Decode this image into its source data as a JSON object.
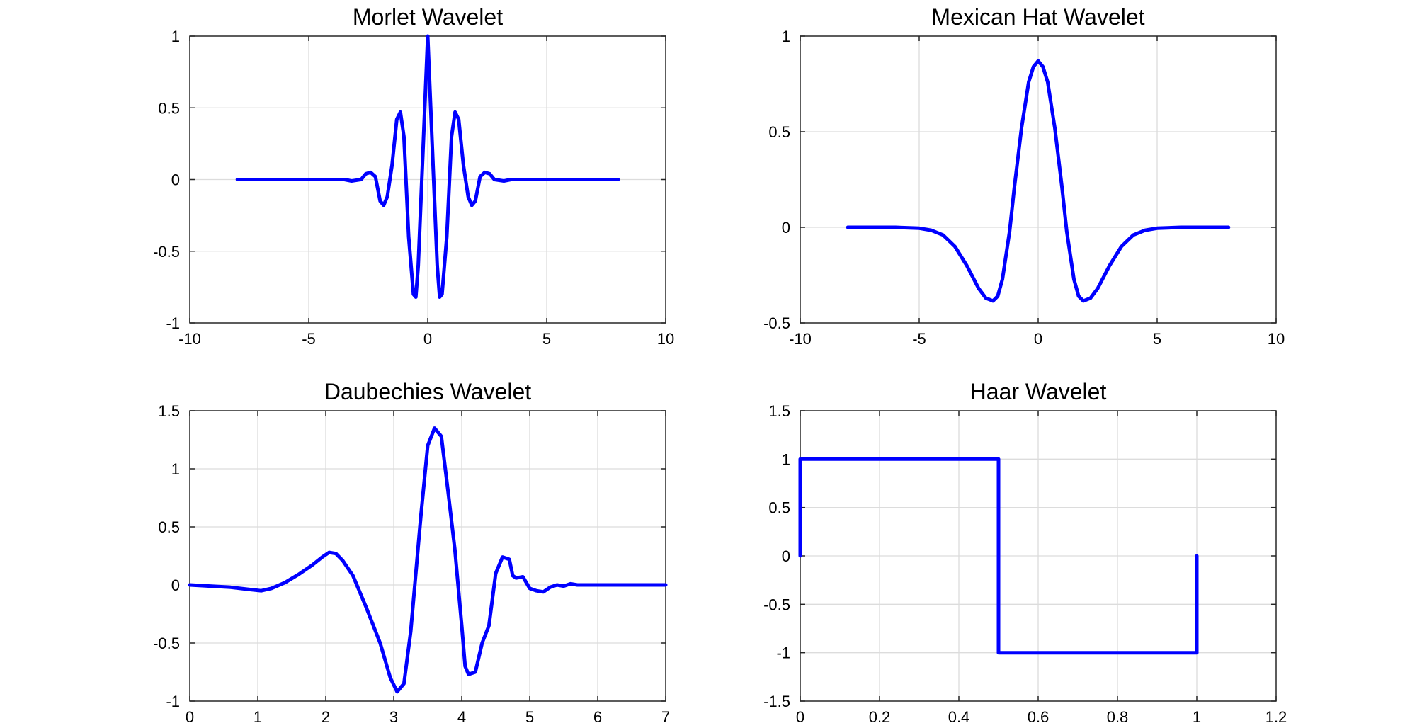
{
  "chart_data": [
    {
      "type": "line",
      "title": "Morlet Wavelet",
      "xlabel": "",
      "ylabel": "",
      "xlim": [
        -10,
        10
      ],
      "ylim": [
        -1,
        1
      ],
      "xticks": [
        -10,
        -5,
        0,
        5,
        10
      ],
      "yticks": [
        -1,
        -0.5,
        0,
        0.5,
        1
      ],
      "xtick_labels": [
        "-10",
        "-5",
        "0",
        "5",
        "10"
      ],
      "ytick_labels": [
        "-1",
        "-0.5",
        "0",
        "0.5",
        "1"
      ],
      "grid": true,
      "legend": "none",
      "color": "#0000ff",
      "series": [
        {
          "x": [
            -8,
            -4,
            -3.5,
            -3.2,
            -2.8,
            -2.6,
            -2.4,
            -2.2,
            -2.0,
            -1.85,
            -1.7,
            -1.5,
            -1.3,
            -1.15,
            -1.0,
            -0.8,
            -0.6,
            -0.5,
            -0.4,
            -0.2,
            0,
            0.2,
            0.4,
            0.5,
            0.6,
            0.8,
            1.0,
            1.15,
            1.3,
            1.5,
            1.7,
            1.85,
            2.0,
            2.2,
            2.4,
            2.6,
            2.8,
            3.2,
            3.5,
            4,
            8
          ],
          "y": [
            0,
            0,
            0,
            -0.01,
            0.0,
            0.04,
            0.05,
            0.02,
            -0.15,
            -0.18,
            -0.12,
            0.1,
            0.42,
            0.47,
            0.3,
            -0.4,
            -0.8,
            -0.82,
            -0.6,
            0.2,
            1.0,
            0.2,
            -0.6,
            -0.82,
            -0.8,
            -0.4,
            0.3,
            0.47,
            0.42,
            0.1,
            -0.12,
            -0.18,
            -0.15,
            0.02,
            0.05,
            0.04,
            0.0,
            -0.01,
            0,
            0,
            0
          ]
        }
      ]
    },
    {
      "type": "line",
      "title": "Mexican Hat Wavelet",
      "xlabel": "",
      "ylabel": "",
      "xlim": [
        -10,
        10
      ],
      "ylim": [
        -0.5,
        1
      ],
      "xticks": [
        -10,
        -5,
        0,
        5,
        10
      ],
      "yticks": [
        -0.5,
        0,
        0.5,
        1
      ],
      "xtick_labels": [
        "-10",
        "-5",
        "0",
        "5",
        "10"
      ],
      "ytick_labels": [
        "-0.5",
        "0",
        "0.5",
        "1"
      ],
      "grid": true,
      "legend": "none",
      "color": "#0000ff",
      "series": [
        {
          "x": [
            -8,
            -6,
            -5,
            -4.5,
            -4,
            -3.5,
            -3,
            -2.5,
            -2.2,
            -1.9,
            -1.7,
            -1.5,
            -1.2,
            -1.0,
            -0.7,
            -0.4,
            -0.2,
            0,
            0.2,
            0.4,
            0.7,
            1.0,
            1.2,
            1.5,
            1.7,
            1.9,
            2.2,
            2.5,
            3,
            3.5,
            4,
            4.5,
            5,
            6,
            8
          ],
          "y": [
            0,
            0,
            -0.005,
            -0.015,
            -0.04,
            -0.1,
            -0.2,
            -0.32,
            -0.37,
            -0.385,
            -0.36,
            -0.27,
            -0.02,
            0.21,
            0.52,
            0.76,
            0.84,
            0.87,
            0.84,
            0.76,
            0.52,
            0.21,
            -0.02,
            -0.27,
            -0.36,
            -0.385,
            -0.37,
            -0.32,
            -0.2,
            -0.1,
            -0.04,
            -0.015,
            -0.005,
            0,
            0
          ]
        }
      ]
    },
    {
      "type": "line",
      "title": "Daubechies Wavelet",
      "xlabel": "",
      "ylabel": "",
      "xlim": [
        0,
        7
      ],
      "ylim": [
        -1,
        1.5
      ],
      "xticks": [
        0,
        1,
        2,
        3,
        4,
        5,
        6,
        7
      ],
      "yticks": [
        -1,
        -0.5,
        0,
        0.5,
        1,
        1.5
      ],
      "xtick_labels": [
        "0",
        "1",
        "2",
        "3",
        "4",
        "5",
        "6",
        "7"
      ],
      "ytick_labels": [
        "-1",
        "-0.5",
        "0",
        "0.5",
        "1",
        "1.5"
      ],
      "grid": true,
      "legend": "none",
      "color": "#0000ff",
      "series": [
        {
          "x": [
            0,
            0.3,
            0.6,
            0.9,
            1.05,
            1.2,
            1.4,
            1.6,
            1.8,
            1.95,
            2.05,
            2.15,
            2.25,
            2.4,
            2.6,
            2.8,
            2.95,
            3.05,
            3.15,
            3.25,
            3.4,
            3.5,
            3.6,
            3.7,
            3.8,
            3.9,
            4.0,
            4.05,
            4.1,
            4.2,
            4.3,
            4.4,
            4.5,
            4.6,
            4.7,
            4.75,
            4.8,
            4.9,
            4.95,
            5.0,
            5.1,
            5.2,
            5.3,
            5.4,
            5.5,
            5.6,
            5.7,
            6,
            7
          ],
          "y": [
            0,
            -0.01,
            -0.02,
            -0.04,
            -0.05,
            -0.03,
            0.02,
            0.09,
            0.17,
            0.24,
            0.28,
            0.27,
            0.21,
            0.08,
            -0.2,
            -0.5,
            -0.8,
            -0.92,
            -0.85,
            -0.4,
            0.6,
            1.2,
            1.35,
            1.28,
            0.8,
            0.3,
            -0.35,
            -0.7,
            -0.77,
            -0.75,
            -0.5,
            -0.35,
            0.1,
            0.24,
            0.22,
            0.08,
            0.06,
            0.07,
            0.02,
            -0.03,
            -0.05,
            -0.06,
            -0.02,
            0.0,
            -0.01,
            0.01,
            0.0,
            0.0,
            0.0
          ]
        }
      ]
    },
    {
      "type": "line",
      "title": "Haar Wavelet",
      "xlabel": "",
      "ylabel": "",
      "xlim": [
        0,
        1.2
      ],
      "ylim": [
        -1.5,
        1.5
      ],
      "xticks": [
        0,
        0.2,
        0.4,
        0.6,
        0.8,
        1,
        1.2
      ],
      "yticks": [
        -1.5,
        -1,
        -0.5,
        0,
        0.5,
        1,
        1.5
      ],
      "xtick_labels": [
        "0",
        "0.2",
        "0.4",
        "0.6",
        "0.8",
        "1",
        "1.2"
      ],
      "ytick_labels": [
        "-1.5",
        "-1",
        "-0.5",
        "0",
        "0.5",
        "1",
        "1.5"
      ],
      "grid": true,
      "legend": "none",
      "color": "#0000ff",
      "series": [
        {
          "x": [
            0,
            0,
            0.5,
            0.5,
            1,
            1
          ],
          "y": [
            0,
            1,
            1,
            -1,
            -1,
            0
          ]
        }
      ]
    }
  ]
}
